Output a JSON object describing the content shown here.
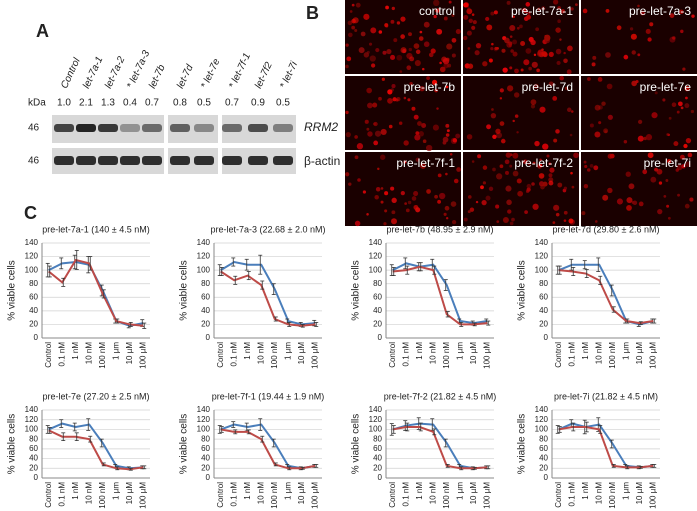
{
  "panel_a": {
    "label": "A",
    "lanes": [
      "Control",
      "let-7a-1",
      "let-7a-2",
      "* let-7a-3",
      "let-7b",
      "let-7d",
      "* let-7e",
      "* let-7f-1",
      "let-7f2",
      "* let-7i"
    ],
    "kda_label": "kDa",
    "ratios": [
      "1.0",
      "2.1",
      "1.3",
      "0.4",
      "0.7",
      "0.8",
      "0.5",
      "0.7",
      "0.9",
      "0.5"
    ],
    "markers": [
      "46",
      "46"
    ],
    "proteins": [
      "RRM2",
      "β-actin"
    ]
  },
  "panel_b": {
    "label": "B",
    "images": [
      "control",
      "pre-let-7a-1",
      "pre-let-7a-3",
      "pre-let-7b",
      "pre-let-7d",
      "pre-let-7e",
      "pre-let-7f-1",
      "pre-let-7f-2",
      "pre-let-7i"
    ]
  },
  "panel_c": {
    "label": "C"
  },
  "chart_data": [
    {
      "type": "line",
      "title": "pre-let-7a-1 (140 ± 4.5 nM)",
      "ylabel": "% viable cells",
      "categories": [
        "Control",
        "0.1 nM",
        "1 nM",
        "10 nM",
        "100 nM",
        "1 µm",
        "10 µM",
        "100 µM"
      ],
      "ylim": [
        0,
        140
      ],
      "yticks": [
        0,
        20,
        40,
        60,
        80,
        100,
        120,
        140
      ],
      "grid": true,
      "series": [
        {
          "color": "#4a7ebb",
          "values": [
            100,
            110,
            112,
            108,
            70,
            25,
            18,
            22
          ],
          "errors": [
            10,
            8,
            10,
            12,
            8,
            3,
            3,
            5
          ]
        },
        {
          "color": "#be4b48",
          "values": [
            98,
            82,
            115,
            110,
            65,
            25,
            20,
            18
          ],
          "errors": [
            8,
            6,
            14,
            10,
            6,
            3,
            3,
            4
          ]
        }
      ]
    },
    {
      "type": "line",
      "title": "pre-let-7a-3 (22.68 ± 2.0 nM)",
      "ylabel": "% viable cells",
      "categories": [
        "Control",
        "0.1 nM",
        "1 nM",
        "10 nM",
        "100 nM",
        "1 µm",
        "10 µM",
        "100 µM"
      ],
      "ylim": [
        0,
        140
      ],
      "yticks": [
        0,
        20,
        40,
        60,
        80,
        100,
        120,
        140
      ],
      "grid": true,
      "series": [
        {
          "color": "#4a7ebb",
          "values": [
            100,
            112,
            108,
            108,
            72,
            25,
            20,
            22
          ],
          "errors": [
            8,
            6,
            8,
            14,
            8,
            3,
            3,
            4
          ]
        },
        {
          "color": "#be4b48",
          "values": [
            98,
            85,
            92,
            78,
            28,
            20,
            18,
            20
          ],
          "errors": [
            6,
            6,
            6,
            6,
            3,
            3,
            2,
            3
          ]
        }
      ]
    },
    {
      "type": "line",
      "title": "pre-let-7b (48.95 ± 2.9 nM)",
      "ylabel": "% viable cells",
      "categories": [
        "Control",
        "0.1 nM",
        "1 nM",
        "10 nM",
        "100 nM",
        "1 µm",
        "10 µM",
        "100 µM"
      ],
      "ylim": [
        0,
        140
      ],
      "yticks": [
        0,
        20,
        40,
        60,
        80,
        100,
        120,
        140
      ],
      "grid": true,
      "series": [
        {
          "color": "#4a7ebb",
          "values": [
            100,
            110,
            105,
            108,
            78,
            25,
            22,
            25
          ],
          "errors": [
            8,
            8,
            6,
            8,
            8,
            3,
            3,
            3
          ]
        },
        {
          "color": "#be4b48",
          "values": [
            98,
            100,
            105,
            100,
            35,
            20,
            20,
            22
          ],
          "errors": [
            6,
            6,
            6,
            6,
            4,
            3,
            2,
            3
          ]
        }
      ]
    },
    {
      "type": "line",
      "title": "pre-let-7d (29.80 ± 2.6 nM)",
      "ylabel": "% viable cells",
      "categories": [
        "Control",
        "0.1 nM",
        "1 nM",
        "10 nM",
        "100 nM",
        "1 µm",
        "10 µM",
        "100 µM"
      ],
      "ylim": [
        0,
        140
      ],
      "yticks": [
        0,
        20,
        40,
        60,
        80,
        100,
        120,
        140
      ],
      "grid": true,
      "series": [
        {
          "color": "#4a7ebb",
          "values": [
            100,
            108,
            108,
            108,
            70,
            25,
            20,
            25
          ],
          "errors": [
            6,
            8,
            6,
            10,
            8,
            3,
            3,
            3
          ]
        },
        {
          "color": "#be4b48",
          "values": [
            100,
            98,
            95,
            85,
            42,
            25,
            22,
            25
          ],
          "errors": [
            6,
            6,
            6,
            6,
            4,
            3,
            2,
            3
          ]
        }
      ]
    },
    {
      "type": "line",
      "title": "pre-let-7e (27.20 ± 2.5 nM)",
      "ylabel": "% viable cells",
      "categories": [
        "Control",
        "0.1 nM",
        "1 nM",
        "10 nM",
        "100 nM",
        "1 µm",
        "10 µM",
        "100 µM"
      ],
      "ylim": [
        0,
        140
      ],
      "yticks": [
        0,
        20,
        40,
        60,
        80,
        100,
        120,
        140
      ],
      "grid": true,
      "series": [
        {
          "color": "#4a7ebb",
          "values": [
            100,
            112,
            105,
            110,
            72,
            25,
            20,
            22
          ],
          "errors": [
            8,
            8,
            8,
            12,
            8,
            3,
            3,
            3
          ]
        },
        {
          "color": "#be4b48",
          "values": [
            98,
            85,
            85,
            80,
            28,
            20,
            18,
            22
          ],
          "errors": [
            6,
            8,
            8,
            6,
            3,
            3,
            2,
            3
          ]
        }
      ]
    },
    {
      "type": "line",
      "title": "pre-let-7f-1 (19.44 ± 1.9 nM)",
      "ylabel": "% viable cells",
      "categories": [
        "Control",
        "0.1 nM",
        "1 nM",
        "10 nM",
        "100 nM",
        "1 µm",
        "10 µM",
        "100 µM"
      ],
      "ylim": [
        0,
        140
      ],
      "yticks": [
        0,
        20,
        40,
        60,
        80,
        100,
        120,
        140
      ],
      "grid": true,
      "series": [
        {
          "color": "#4a7ebb",
          "values": [
            100,
            110,
            105,
            110,
            72,
            25,
            20,
            25
          ],
          "errors": [
            8,
            6,
            8,
            12,
            8,
            3,
            3,
            3
          ]
        },
        {
          "color": "#be4b48",
          "values": [
            100,
            95,
            95,
            80,
            28,
            20,
            20,
            25
          ],
          "errors": [
            6,
            4,
            4,
            6,
            3,
            3,
            2,
            3
          ]
        }
      ]
    },
    {
      "type": "line",
      "title": "pre-let-7f-2 (21.82 ± 4.5 nM)",
      "ylabel": "% viable cells",
      "categories": [
        "Control",
        "0.1 nM",
        "1 nM",
        "10 nM",
        "100 nM",
        "1 µm",
        "10 µM",
        "100 µM"
      ],
      "ylim": [
        0,
        140
      ],
      "yticks": [
        0,
        20,
        40,
        60,
        80,
        100,
        120,
        140
      ],
      "grid": true,
      "series": [
        {
          "color": "#4a7ebb",
          "values": [
            100,
            108,
            112,
            110,
            72,
            25,
            20,
            22
          ],
          "errors": [
            12,
            10,
            12,
            12,
            8,
            3,
            3,
            3
          ]
        },
        {
          "color": "#be4b48",
          "values": [
            100,
            105,
            105,
            95,
            25,
            20,
            20,
            22
          ],
          "errors": [
            8,
            8,
            8,
            6,
            3,
            3,
            2,
            3
          ]
        }
      ]
    },
    {
      "type": "line",
      "title": "pre-let-7i (21.82 ± 4.5 nM)",
      "ylabel": "% viable cells",
      "categories": [
        "Control",
        "0.1 nM",
        "1 nM",
        "10 nM",
        "100 nM",
        "1 µm",
        "10 µM",
        "100 µM"
      ],
      "ylim": [
        0,
        140
      ],
      "yticks": [
        0,
        20,
        40,
        60,
        80,
        100,
        120,
        140
      ],
      "grid": true,
      "series": [
        {
          "color": "#4a7ebb",
          "values": [
            100,
            112,
            105,
            110,
            70,
            25,
            22,
            25
          ],
          "errors": [
            8,
            8,
            14,
            14,
            8,
            3,
            3,
            3
          ]
        },
        {
          "color": "#be4b48",
          "values": [
            100,
            105,
            105,
            100,
            25,
            22,
            22,
            25
          ],
          "errors": [
            6,
            8,
            10,
            8,
            3,
            3,
            2,
            3
          ]
        }
      ]
    }
  ]
}
